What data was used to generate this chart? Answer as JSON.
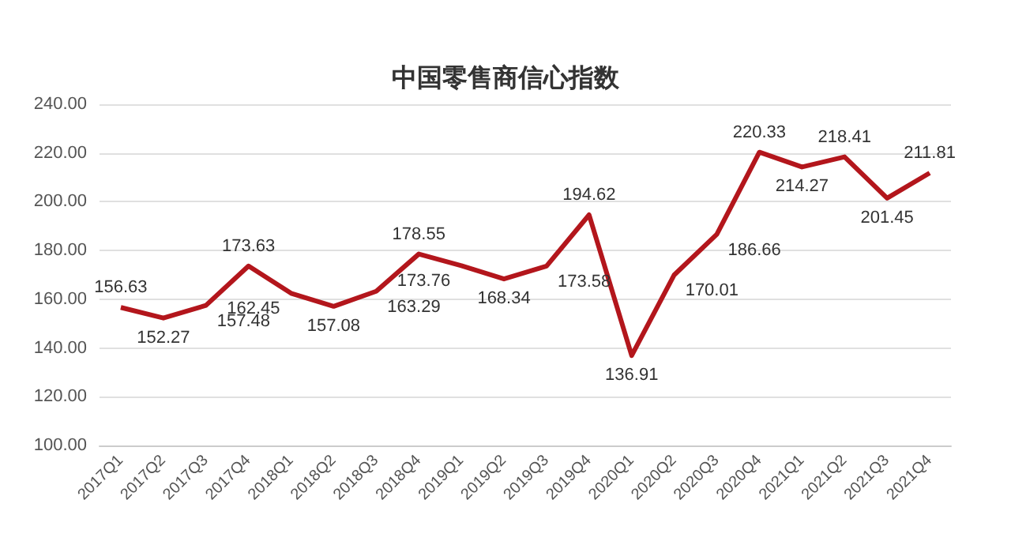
{
  "chart_data": {
    "type": "line",
    "title": "中国零售商信心指数",
    "categories": [
      "2017Q1",
      "2017Q2",
      "2017Q3",
      "2017Q4",
      "2018Q1",
      "2018Q2",
      "2018Q3",
      "2018Q4",
      "2019Q1",
      "2019Q2",
      "2019Q3",
      "2019Q4",
      "2020Q1",
      "2020Q2",
      "2020Q3",
      "2020Q4",
      "2021Q1",
      "2021Q2",
      "2021Q3",
      "2021Q4"
    ],
    "series": [
      {
        "color": "#b3161c",
        "values": [
          156.63,
          152.27,
          157.48,
          173.63,
          162.45,
          157.08,
          163.29,
          178.55,
          173.76,
          168.34,
          173.58,
          194.62,
          136.91,
          170.01,
          186.66,
          220.33,
          214.27,
          218.41,
          201.45,
          211.81
        ]
      }
    ],
    "ylim": [
      100,
      240
    ],
    "yticks": [
      {
        "value": 100,
        "label": "100.00"
      },
      {
        "value": 120,
        "label": "120.00"
      },
      {
        "value": 140,
        "label": "140.00"
      },
      {
        "value": 160,
        "label": "160.00"
      },
      {
        "value": 180,
        "label": "180.00"
      },
      {
        "value": 200,
        "label": "200.00"
      },
      {
        "value": 220,
        "label": "220.00"
      },
      {
        "value": 240,
        "label": "240.00"
      }
    ],
    "grid": "y",
    "data_labels": true,
    "marker": "none",
    "line_style": "solid"
  }
}
